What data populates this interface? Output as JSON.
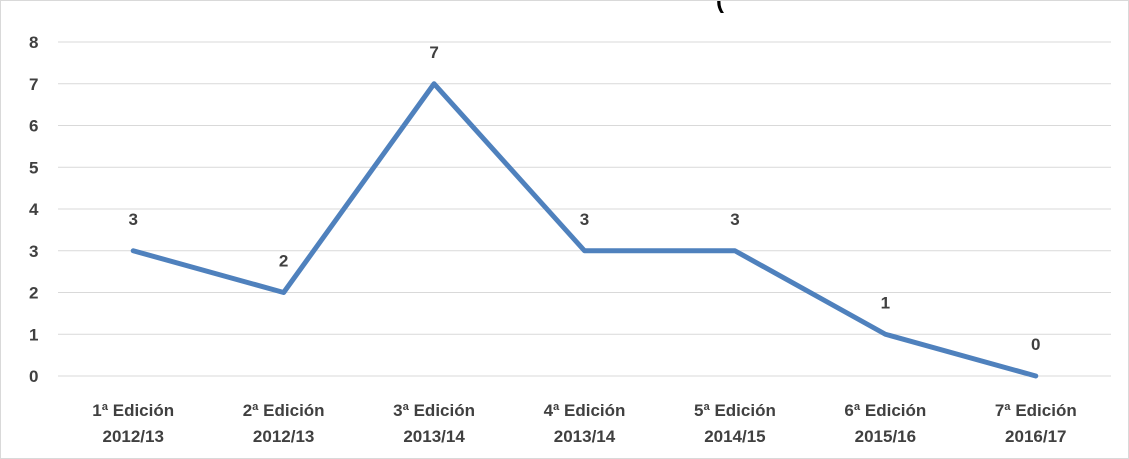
{
  "chart_data": {
    "type": "line",
    "title": "",
    "xlabel": "",
    "ylabel": "",
    "categories": [
      [
        "1ª Edición",
        "2012/13"
      ],
      [
        "2ª Edición",
        "2012/13"
      ],
      [
        "3ª Edición",
        "2013/14"
      ],
      [
        "4ª Edición",
        "2013/14"
      ],
      [
        "5ª Edición",
        "2014/15"
      ],
      [
        "6ª Edición",
        "2015/16"
      ],
      [
        "7ª Edición",
        "2016/17"
      ]
    ],
    "series": [
      {
        "values": [
          3,
          2,
          7,
          3,
          3,
          1,
          0
        ],
        "color": "#4f81bd"
      }
    ],
    "ylim": [
      0,
      8
    ],
    "yticks": [
      0,
      1,
      2,
      3,
      4,
      5,
      6,
      7,
      8
    ],
    "grid": true,
    "data_labels": true,
    "legend": "none"
  },
  "header_partial_text": "(",
  "colors": {
    "line": "#4f81bd",
    "grid": "#d9d9d9",
    "text": "#404040"
  }
}
